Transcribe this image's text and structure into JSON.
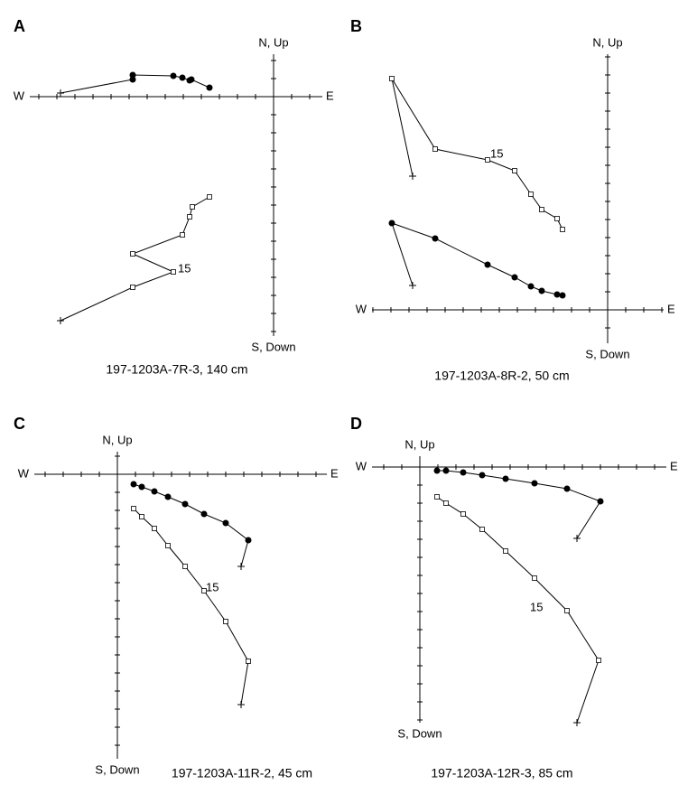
{
  "chart_data": [
    {
      "type": "zijderveld",
      "label": "A",
      "caption": "197-1203A-7R-3, 140 cm",
      "x_labels": {
        "negative": "W",
        "positive": "E"
      },
      "y_labels": {
        "positive": "N, Up",
        "negative": "S, Down"
      },
      "xlim": [
        -13.5,
        2.7
      ],
      "ylim": [
        -13.25,
        2.35
      ],
      "xticks": [
        -13,
        -12,
        -11,
        -10,
        -9,
        -8,
        -7,
        -6,
        -5,
        -4,
        -3,
        -2,
        -1,
        1,
        2
      ],
      "yticks": [
        -13,
        -12,
        -11,
        -10,
        -9,
        -8,
        -7,
        -6,
        -5,
        -4,
        -3,
        -2,
        -1,
        1,
        2
      ],
      "start_marker": "plus",
      "color": "#000000",
      "series": [
        {
          "marker": "circle",
          "x": [
            -11.8,
            -7.8,
            -7.8,
            -5.55,
            -5.05,
            -4.65,
            -4.55,
            -3.55
          ],
          "y": [
            0.2,
            0.95,
            1.2,
            1.15,
            1.05,
            0.9,
            0.95,
            0.5
          ]
        },
        {
          "marker": "square",
          "x": [
            -11.8,
            -7.8,
            -5.55,
            -7.8,
            -5.05,
            -4.65,
            -4.5,
            -3.55
          ],
          "y": [
            -12.4,
            -10.55,
            -9.7,
            -8.7,
            -7.65,
            -6.65,
            -6.1,
            -5.55
          ]
        }
      ],
      "annotations": [
        {
          "text": "15",
          "x": -5.3,
          "y": -9.55
        }
      ]
    },
    {
      "type": "zijderveld",
      "label": "B",
      "caption": "197-1203A-8R-2, 50 cm",
      "x_labels": {
        "negative": "W",
        "positive": "E"
      },
      "y_labels": {
        "positive": "N, Up",
        "negative": "S, Down"
      },
      "xlim": [
        -13.05,
        3.1
      ],
      "ylim": [
        -1.85,
        14.15
      ],
      "xticks": [
        -13,
        -12,
        -11,
        -10,
        -9,
        -8,
        -7,
        -6,
        -5,
        -4,
        -3,
        -2,
        -1,
        1,
        2,
        3
      ],
      "yticks": [
        -1,
        1,
        2,
        3,
        4,
        5,
        6,
        7,
        8,
        9,
        10,
        11,
        12,
        13,
        14
      ],
      "start_marker": "plus",
      "color": "#000000",
      "series": [
        {
          "marker": "circle",
          "x": [
            -10.8,
            -11.95,
            -9.55,
            -6.65,
            -5.15,
            -4.25,
            -3.65,
            -2.8,
            -2.5
          ],
          "y": [
            1.35,
            4.8,
            3.95,
            2.5,
            1.8,
            1.3,
            1.05,
            0.85,
            0.8
          ]
        },
        {
          "marker": "square",
          "x": [
            -10.8,
            -11.95,
            -9.55,
            -6.65,
            -5.15,
            -4.25,
            -3.65,
            -2.8,
            -2.5
          ],
          "y": [
            7.4,
            12.8,
            8.9,
            8.3,
            7.7,
            6.4,
            5.55,
            5.05,
            4.45
          ]
        }
      ],
      "annotations": [
        {
          "text": "15",
          "x": -6.5,
          "y": 8.6
        }
      ]
    },
    {
      "type": "zijderveld",
      "label": "C",
      "caption": "197-1203A-11R-2, 45 cm",
      "x_labels": {
        "negative": "W",
        "positive": "E"
      },
      "y_labels": {
        "positive": "N, Up",
        "negative": "S, Down"
      },
      "xlim": [
        -4.6,
        11.6
      ],
      "ylim": [
        -15.75,
        1.25
      ],
      "xticks": [
        -4,
        -3,
        -2,
        -1,
        1,
        2,
        3,
        4,
        5,
        6,
        7,
        8,
        9,
        10,
        11
      ],
      "yticks": [
        -15,
        -14,
        -13,
        -12,
        -11,
        -10,
        -9,
        -8,
        -7,
        -6,
        -5,
        -4,
        -3,
        -2,
        -1,
        1
      ],
      "start_marker": "plus",
      "color": "#000000",
      "series": [
        {
          "marker": "circle",
          "x": [
            6.85,
            7.25,
            6,
            4.8,
            3.75,
            2.8,
            2.05,
            1.35,
            0.9
          ],
          "y": [
            -5.1,
            -3.65,
            -2.7,
            -2.2,
            -1.65,
            -1.25,
            -0.95,
            -0.7,
            -0.55
          ]
        },
        {
          "marker": "square",
          "x": [
            6.85,
            7.25,
            6,
            4.8,
            3.75,
            2.8,
            2.05,
            1.35,
            0.9
          ],
          "y": [
            -12.75,
            -10.35,
            -8.15,
            -6.45,
            -5.1,
            -3.95,
            -3,
            -2.35,
            -1.9
          ]
        }
      ],
      "annotations": [
        {
          "text": "15",
          "x": 4.9,
          "y": -6.3
        }
      ]
    },
    {
      "type": "zijderveld",
      "label": "D",
      "caption": "197-1203A-12R-3, 85 cm",
      "x_labels": {
        "negative": "W",
        "positive": "E"
      },
      "y_labels": {
        "positive": "N, Up",
        "negative": "S, Down"
      },
      "xlim": [
        -2.65,
        13.65
      ],
      "ylim": [
        -14.15,
        0.6
      ],
      "xticks": [
        -2,
        -1,
        1,
        2,
        3,
        4,
        5,
        6,
        7,
        8,
        9,
        10,
        11,
        12,
        13
      ],
      "yticks": [
        -14,
        -13,
        -12,
        -11,
        -10,
        -9,
        -8,
        -7,
        -6,
        -5,
        -4,
        -3,
        -2,
        -1
      ],
      "start_marker": "plus",
      "color": "#000000",
      "series": [
        {
          "marker": "circle",
          "x": [
            8.7,
            10,
            8.15,
            6.35,
            4.75,
            3.45,
            2.4,
            1.45,
            0.95
          ],
          "y": [
            -3.95,
            -1.9,
            -1.2,
            -0.9,
            -0.65,
            -0.45,
            -0.3,
            -0.2,
            -0.2
          ]
        },
        {
          "marker": "square",
          "x": [
            8.7,
            9.9,
            8.15,
            6.35,
            4.75,
            3.45,
            2.4,
            1.45,
            0.95
          ],
          "y": [
            -14.15,
            -10.7,
            -7.95,
            -6.15,
            -4.65,
            -3.45,
            -2.6,
            -2,
            -1.65
          ]
        }
      ],
      "annotations": [
        {
          "text": "15",
          "x": 6.1,
          "y": -7.8
        }
      ]
    }
  ]
}
